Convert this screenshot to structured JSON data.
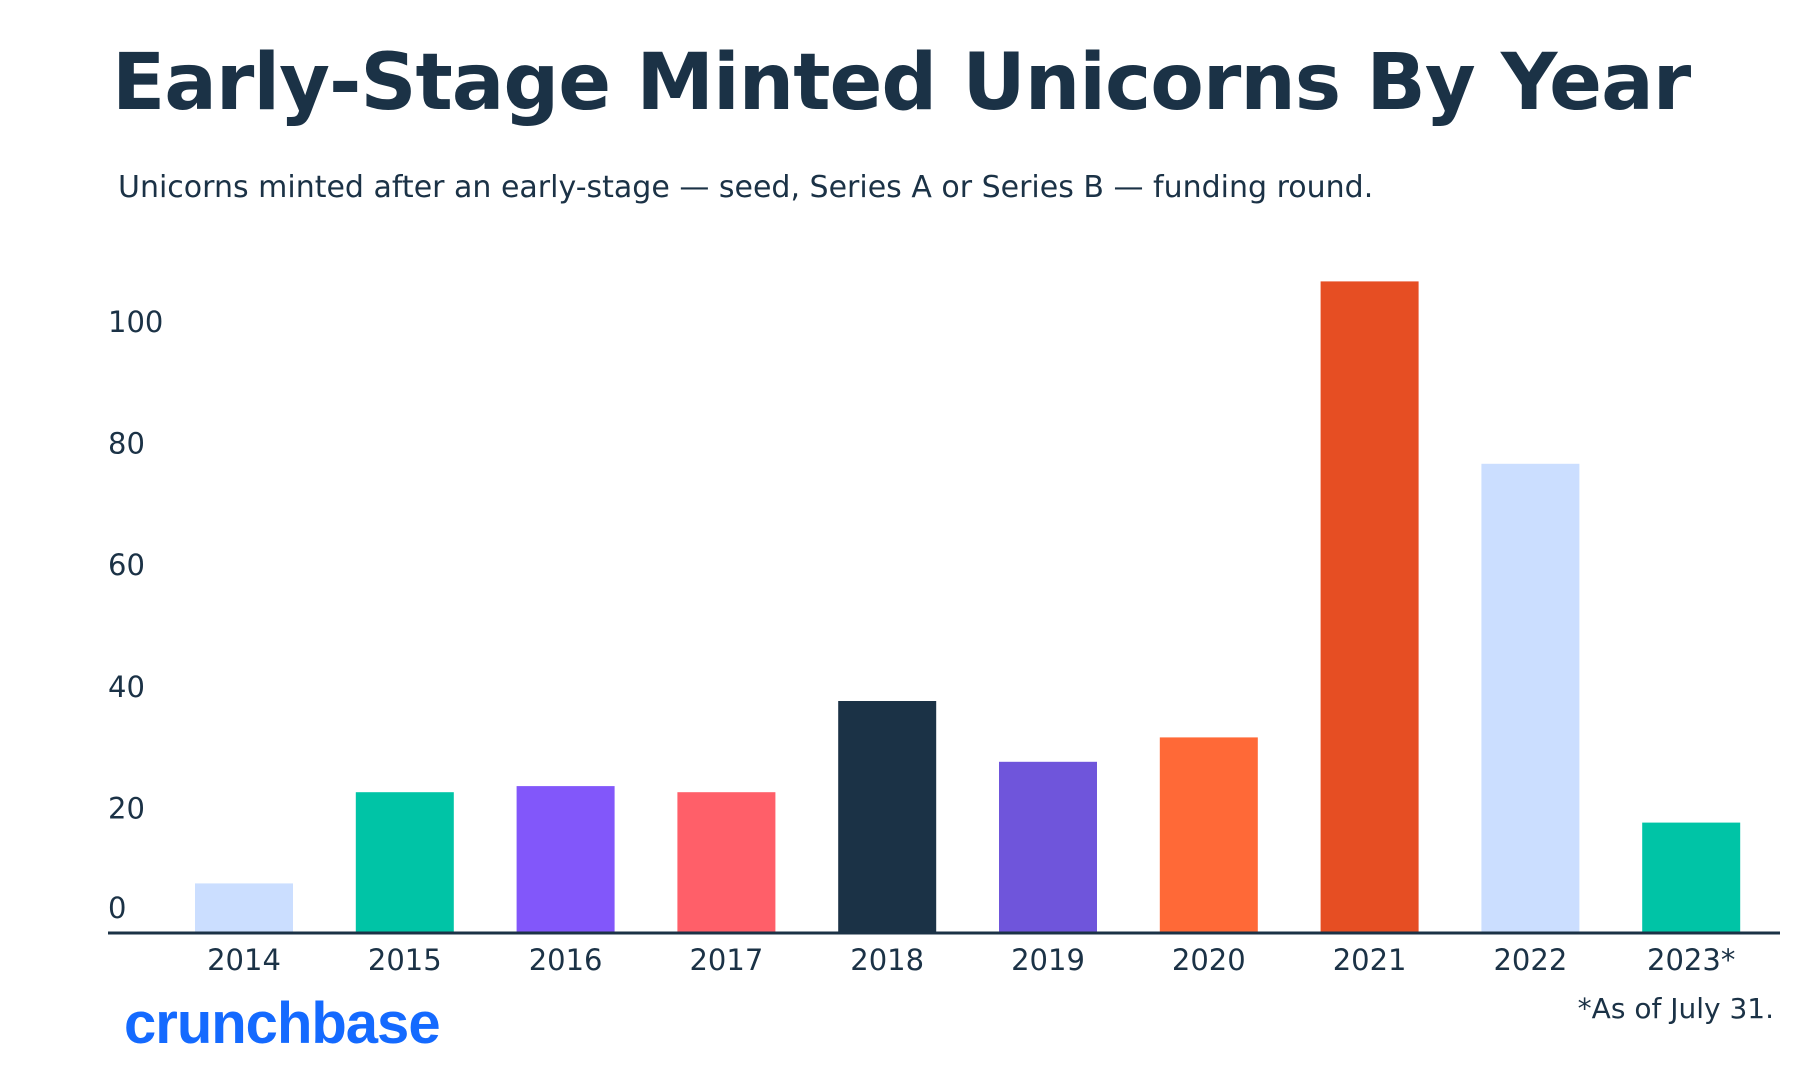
{
  "chart_data": {
    "type": "bar",
    "title": "Early-Stage Minted Unicorns By Year",
    "subtitle": "Unicorns minted after an early-stage — seed, Series A or Series B — funding round.",
    "categories": [
      "2014",
      "2015",
      "2016",
      "2017",
      "2018",
      "2019",
      "2020",
      "2021",
      "2022",
      "2023*"
    ],
    "values": [
      8,
      23,
      24,
      23,
      38,
      28,
      32,
      107,
      77,
      18
    ],
    "colors": [
      "#cbdeff",
      "#00c4a6",
      "#8257fa",
      "#ff5f69",
      "#1b3246",
      "#6f55db",
      "#ff6937",
      "#e64e23",
      "#cbdeff",
      "#00c4a6"
    ],
    "yticks": [
      "0",
      "20",
      "40",
      "60",
      "80",
      "100"
    ],
    "ytick_values": [
      0,
      20,
      40,
      60,
      80,
      100
    ],
    "ylim": [
      0,
      110
    ],
    "xlabel": "",
    "ylabel": "",
    "grid": false,
    "axis_color": "#1b3246"
  },
  "footnote": "*As of July 31.",
  "logo_text": "crunchbase",
  "colors": {
    "text": "#1b3246",
    "brand": "#146aff",
    "background": "#ffffff"
  }
}
